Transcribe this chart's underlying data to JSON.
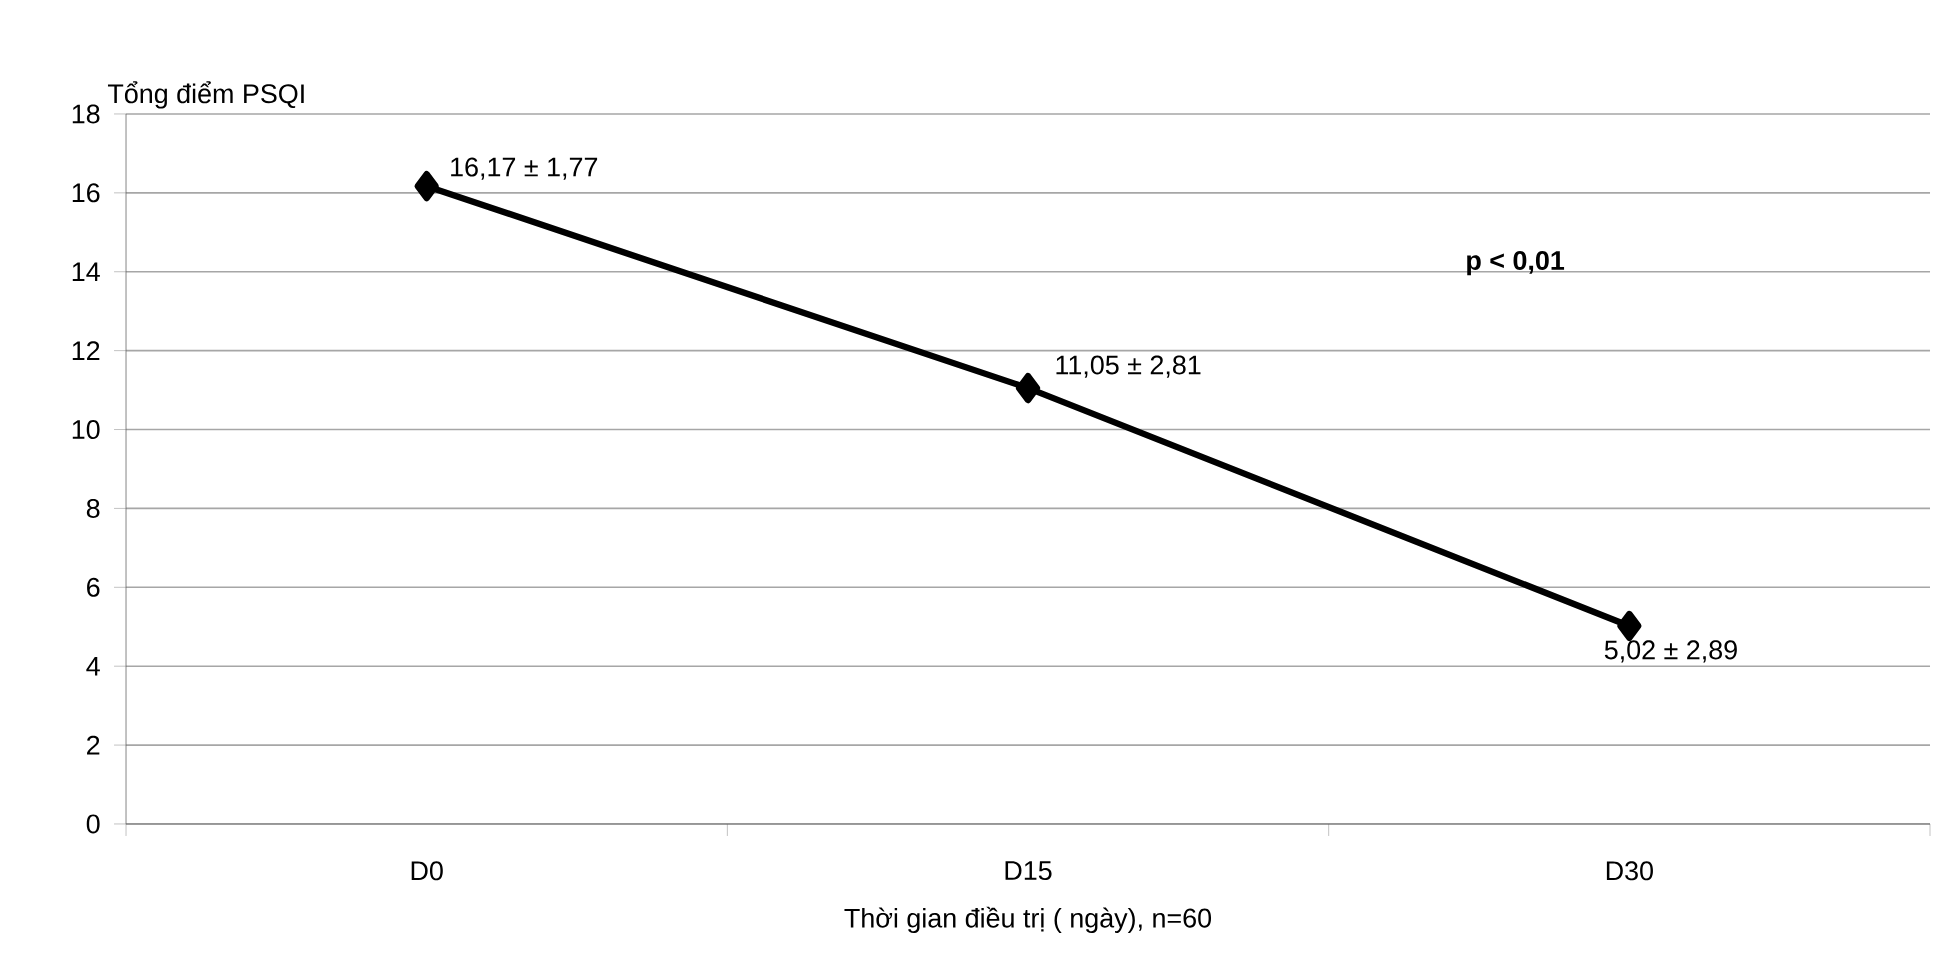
{
  "chart_data": {
    "type": "line",
    "xlabel": "Thời gian điều trị ( ngày), n=60",
    "ylabel": "Tổng điểm PSQI",
    "categories": [
      "D0",
      "D15",
      "D30"
    ],
    "series": [
      {
        "color": "#000000",
        "values": [
          16.17,
          11.05,
          5.02
        ]
      }
    ],
    "ylim": [
      0,
      18
    ],
    "yticks": [
      0,
      2,
      4,
      6,
      8,
      10,
      12,
      14,
      16,
      18
    ],
    "grid": "y",
    "marker": "diamond",
    "line_style": "solid",
    "annotations": [
      {
        "text": "16,17 ± 1,77",
        "x": "D0",
        "y": 16.17
      },
      {
        "text": "11,05 ± 2,81",
        "x": "D15",
        "y": 11.05
      },
      {
        "text": "5,02 ± 2,89",
        "x": "D30",
        "y": 5.02
      },
      "p < 0,01"
    ]
  }
}
